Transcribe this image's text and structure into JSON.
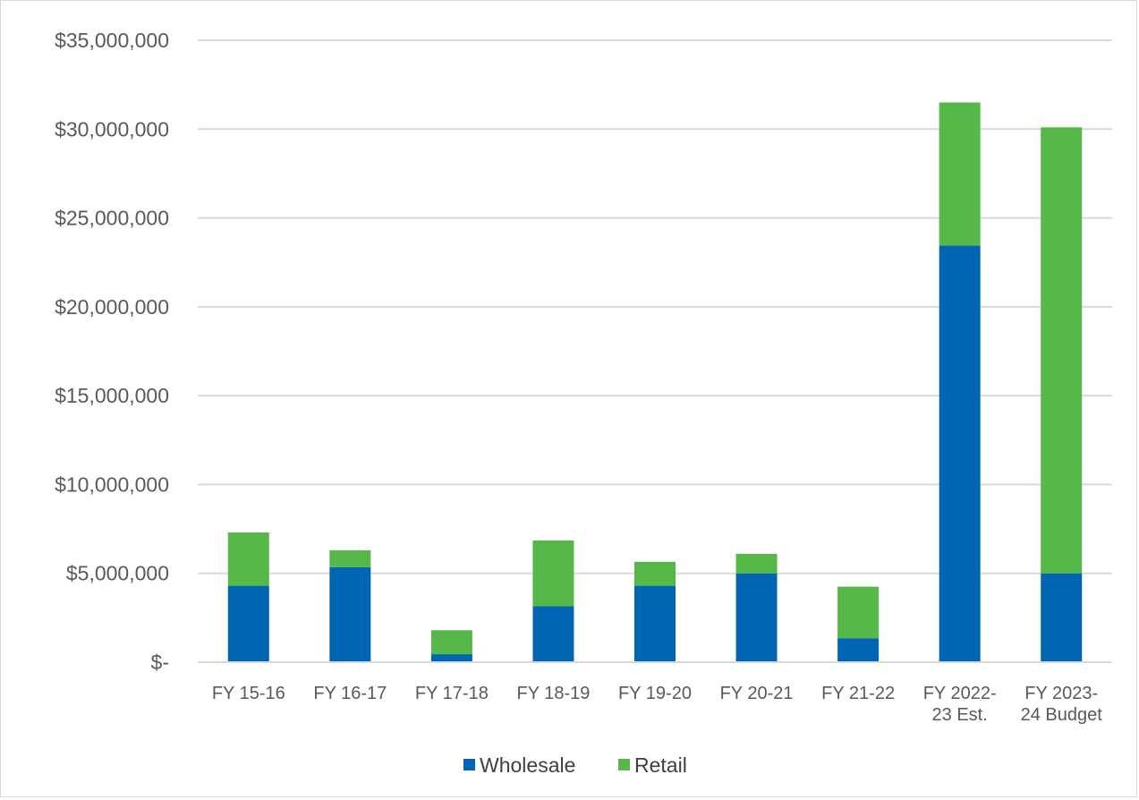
{
  "chart_data": {
    "type": "bar",
    "stacked": true,
    "categories": [
      [
        "FY 15-16"
      ],
      [
        "FY 16-17"
      ],
      [
        "FY 17-18"
      ],
      [
        "FY 18-19"
      ],
      [
        "FY 19-20"
      ],
      [
        "FY 20-21"
      ],
      [
        "FY 21-22"
      ],
      [
        "FY 2022-",
        "23 Est."
      ],
      [
        "FY 2023-",
        "24 Budget"
      ]
    ],
    "series": [
      {
        "name": "Wholesale",
        "color": "#0066b3",
        "values": [
          4300000,
          5350000,
          450000,
          3150000,
          4300000,
          5000000,
          1350000,
          23450000,
          5000000
        ]
      },
      {
        "name": "Retail",
        "color": "#55b848",
        "values": [
          3000000,
          950000,
          1350000,
          3700000,
          1350000,
          1100000,
          2900000,
          8050000,
          25100000
        ]
      }
    ],
    "yticks": [
      "$-",
      "$5,000,000",
      "$10,000,000",
      "$15,000,000",
      "$20,000,000",
      "$25,000,000",
      "$30,000,000",
      "$35,000,000"
    ],
    "ylim": [
      0,
      35000000
    ],
    "grid": true,
    "gridColor": "#d9d9d9",
    "legend_position": "bottom"
  }
}
